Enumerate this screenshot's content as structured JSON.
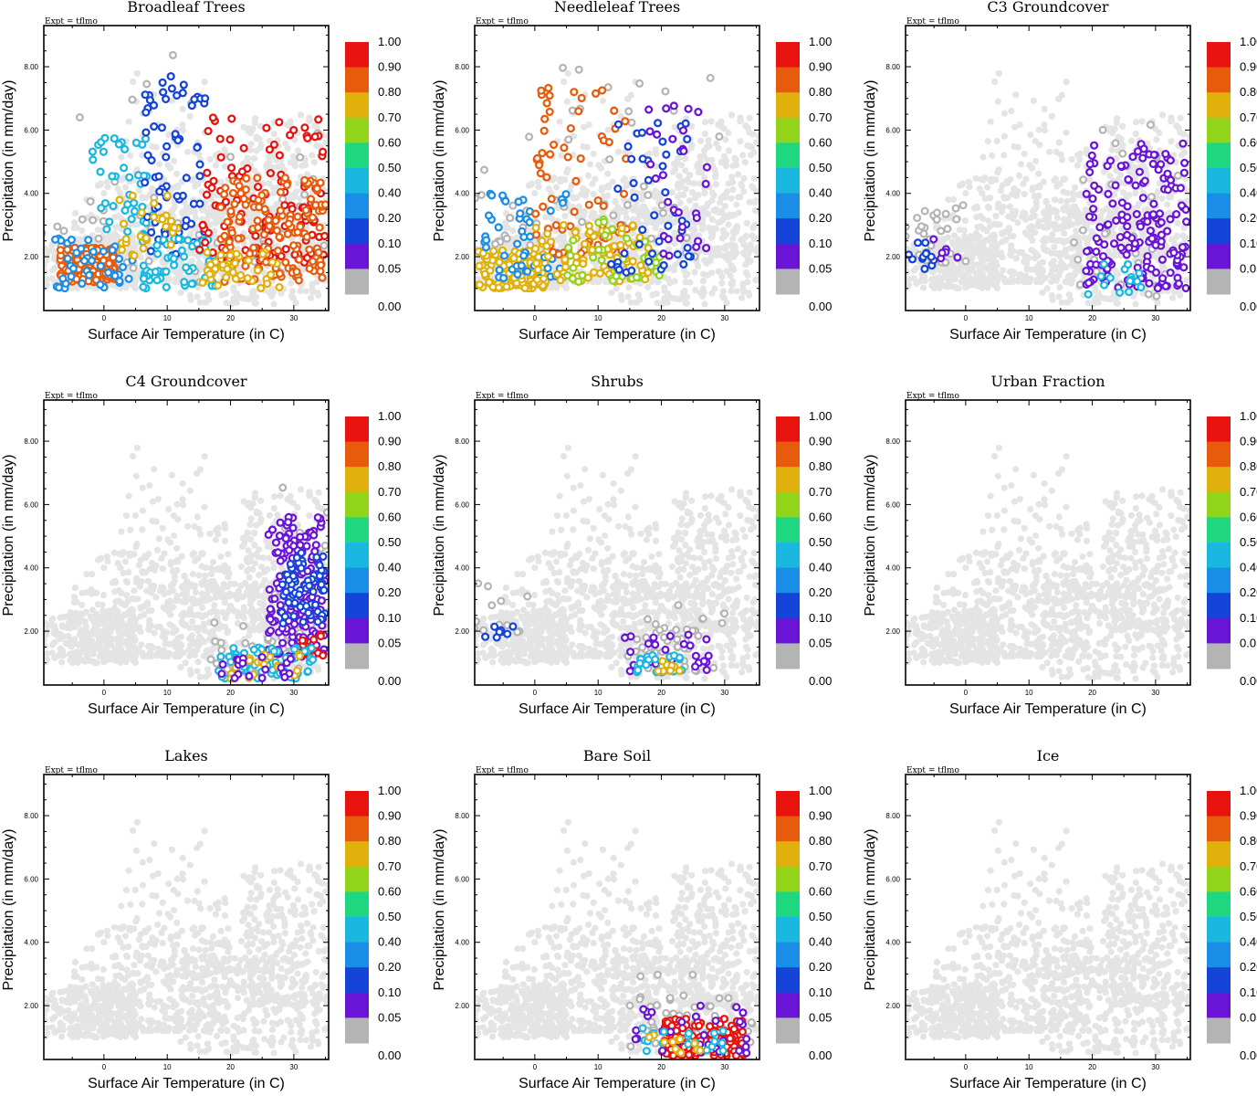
{
  "chart_data": {
    "type": "scatter",
    "figure": "Precipitation vs surface air temperature colored by land surface type fraction",
    "expt_label": "Expt = tflmo",
    "xlabel": "Surface Air Temperature (in C)",
    "ylabel": "Precipitation (in mm/day)",
    "xlim": [
      -9.5,
      35.5
    ],
    "ylim": [
      0.3,
      9.3
    ],
    "xticks": [
      "0",
      "10",
      "20",
      "30"
    ],
    "xtick_values": [
      0,
      10,
      20,
      30
    ],
    "yticks": [
      "2.00",
      "4.00",
      "6.00",
      "8.00"
    ],
    "ytick_values": [
      2,
      4,
      6,
      8
    ],
    "colorbar": {
      "labels": [
        "1.00",
        "0.90",
        "0.80",
        "0.70",
        "0.60",
        "0.50",
        "0.40",
        "0.20",
        "0.10",
        "0.05",
        "0.00"
      ],
      "colors": [
        "#e8120e",
        "#e65c0c",
        "#e0b10c",
        "#92d41a",
        "#1fd77e",
        "#1ab8df",
        "#1a8ee6",
        "#1544d8",
        "#6a14d6",
        "#b4b4b4"
      ],
      "zero_color": "#b4b4b4",
      "background_color": "#e4e4e4"
    },
    "panels": [
      {
        "title": "Broadleaf Trees",
        "highlight": [
          {
            "x": [
              -7,
              2
            ],
            "y": [
              1.2,
              2.3
            ],
            "color": "#e65c0c",
            "n": 160
          },
          {
            "x": [
              -8,
              5
            ],
            "y": [
              1.0,
              2.6
            ],
            "color": "#1a8ee6",
            "n": 40
          },
          {
            "x": [
              -2,
              8
            ],
            "y": [
              2.5,
              5.8
            ],
            "color": "#1ab8df",
            "n": 40
          },
          {
            "x": [
              6,
              16
            ],
            "y": [
              2.0,
              7.8
            ],
            "color": "#1544d8",
            "n": 70
          },
          {
            "x": [
              6,
              18
            ],
            "y": [
              1.0,
              2.6
            ],
            "color": "#1ab8df",
            "n": 60
          },
          {
            "x": [
              15,
              35
            ],
            "y": [
              1.8,
              6.5
            ],
            "color": "#e8120e",
            "n": 120
          },
          {
            "x": [
              18,
              35
            ],
            "y": [
              1.2,
              4.5
            ],
            "color": "#e65c0c",
            "n": 150
          },
          {
            "x": [
              15,
              28
            ],
            "y": [
              1.0,
              2.2
            ],
            "color": "#e0b10c",
            "n": 40
          },
          {
            "x": [
              2,
              12
            ],
            "y": [
              2.0,
              4.0
            ],
            "color": "#e0b10c",
            "n": 30
          }
        ]
      },
      {
        "title": "Needleleaf Trees",
        "highlight": [
          {
            "x": [
              -9,
              2
            ],
            "y": [
              1.0,
              2.2
            ],
            "color": "#e0b10c",
            "n": 150
          },
          {
            "x": [
              -8,
              5
            ],
            "y": [
              1.3,
              4.0
            ],
            "color": "#1a8ee6",
            "n": 50
          },
          {
            "x": [
              0,
              15
            ],
            "y": [
              2.0,
              7.5
            ],
            "color": "#e65c0c",
            "n": 70
          },
          {
            "x": [
              0,
              18
            ],
            "y": [
              1.2,
              3.0
            ],
            "color": "#e0b10c",
            "n": 90
          },
          {
            "x": [
              5,
              20
            ],
            "y": [
              1.2,
              3.2
            ],
            "color": "#92d41a",
            "n": 40
          },
          {
            "x": [
              12,
              25
            ],
            "y": [
              1.5,
              6.5
            ],
            "color": "#1544d8",
            "n": 45
          },
          {
            "x": [
              18,
              28
            ],
            "y": [
              2.0,
              6.8
            ],
            "color": "#6a14d6",
            "n": 30
          }
        ]
      },
      {
        "title": "C3 Groundcover",
        "highlight": [
          {
            "x": [
              -9,
              -5
            ],
            "y": [
              1.6,
              2.6
            ],
            "color": "#1544d8",
            "n": 12
          },
          {
            "x": [
              -6,
              -1
            ],
            "y": [
              1.8,
              2.8
            ],
            "color": "#6a14d6",
            "n": 6
          },
          {
            "x": [
              19,
              35
            ],
            "y": [
              1.0,
              5.6
            ],
            "color": "#6a14d6",
            "n": 170
          },
          {
            "x": [
              19,
              29
            ],
            "y": [
              0.7,
              1.8
            ],
            "color": "#1ab8df",
            "n": 15
          }
        ]
      },
      {
        "title": "C4 Groundcover",
        "highlight": [
          {
            "x": [
              26,
              35
            ],
            "y": [
              1.2,
              5.6
            ],
            "color": "#6a14d6",
            "n": 160
          },
          {
            "x": [
              28,
              35
            ],
            "y": [
              2.2,
              4.5
            ],
            "color": "#1544d8",
            "n": 70
          },
          {
            "x": [
              31,
              35
            ],
            "y": [
              1.2,
              2.0
            ],
            "color": "#e8120e",
            "n": 15
          },
          {
            "x": [
              18,
              33
            ],
            "y": [
              0.5,
              1.5
            ],
            "color": "#1ab8df",
            "n": 60
          },
          {
            "x": [
              20,
              32
            ],
            "y": [
              0.5,
              1.3
            ],
            "color": "#e0b10c",
            "n": 20
          },
          {
            "x": [
              18,
              30
            ],
            "y": [
              0.5,
              1.2
            ],
            "color": "#6a14d6",
            "n": 20
          }
        ]
      },
      {
        "title": "Shrubs",
        "highlight": [
          {
            "x": [
              -9,
              -3
            ],
            "y": [
              1.8,
              2.7
            ],
            "color": "#1544d8",
            "n": 8
          },
          {
            "x": [
              14,
              28
            ],
            "y": [
              0.7,
              1.9
            ],
            "color": "#6a14d6",
            "n": 30
          },
          {
            "x": [
              16,
              24
            ],
            "y": [
              0.7,
              1.3
            ],
            "color": "#1ab8df",
            "n": 25
          },
          {
            "x": [
              18,
              24
            ],
            "y": [
              0.7,
              1.1
            ],
            "color": "#e0b10c",
            "n": 8
          }
        ]
      },
      {
        "title": "Urban Fraction",
        "highlight": []
      },
      {
        "title": "Lakes",
        "highlight": []
      },
      {
        "title": "Bare Soil",
        "highlight": [
          {
            "x": [
              20,
              33
            ],
            "y": [
              0.4,
              1.6
            ],
            "color": "#e8120e",
            "n": 120
          },
          {
            "x": [
              15,
              34
            ],
            "y": [
              0.5,
              2.0
            ],
            "color": "#6a14d6",
            "n": 30
          },
          {
            "x": [
              17,
              30
            ],
            "y": [
              0.5,
              1.4
            ],
            "color": "#1ab8df",
            "n": 20
          },
          {
            "x": [
              18,
              28
            ],
            "y": [
              0.5,
              1.2
            ],
            "color": "#e0b10c",
            "n": 12
          }
        ]
      },
      {
        "title": "Ice",
        "highlight": []
      }
    ]
  }
}
